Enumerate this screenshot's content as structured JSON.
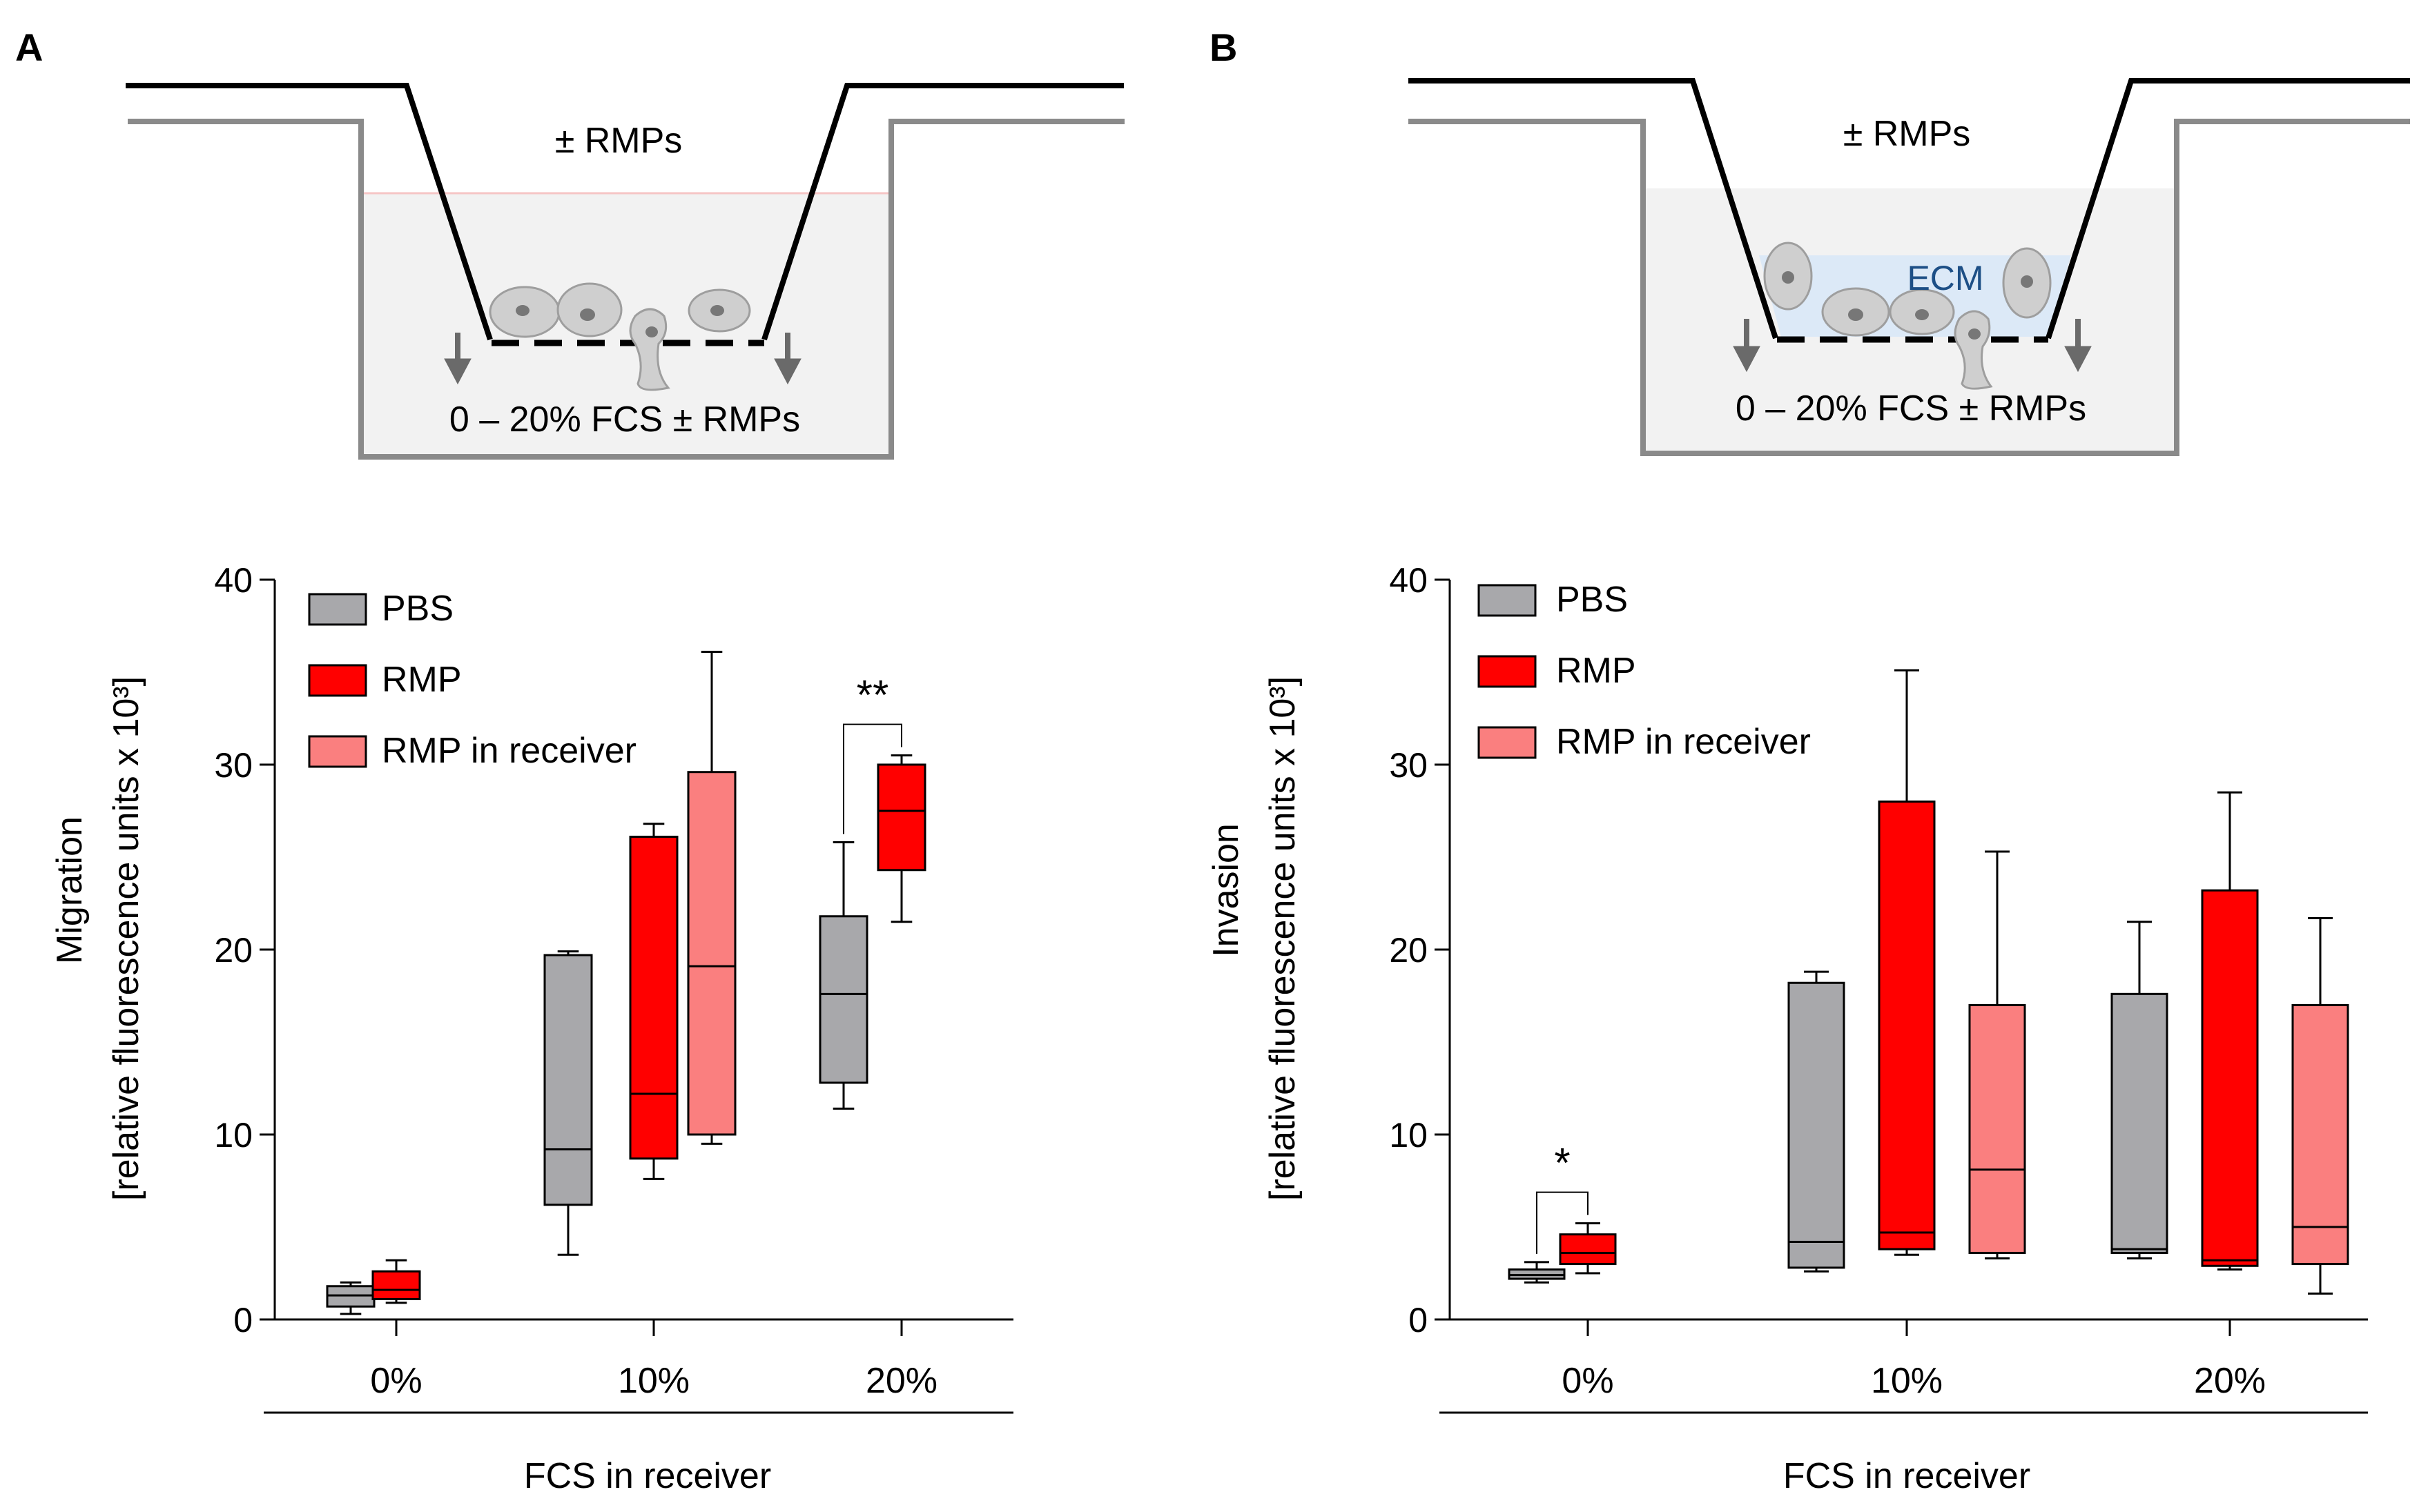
{
  "panels": [
    {
      "letter": "A",
      "schematic": {
        "top_label": "± RMPs",
        "bottom_label": "0 – 20% FCS ± RMPs",
        "ecm_label": ""
      },
      "chart_data": {
        "type": "box",
        "ylabel_line1": "Migration",
        "ylabel_line2": "[relative fluorescence units x 10³]",
        "xlabel": "FCS in receiver",
        "ylim": [
          0,
          40
        ],
        "yticks": [
          "0",
          "10",
          "20",
          "30",
          "40"
        ],
        "categories": [
          "0%",
          "10%",
          "20%"
        ],
        "legend": [
          "PBS",
          "RMP",
          "RMP in receiver"
        ],
        "significance": [
          {
            "label": "**",
            "category": "20%",
            "between": [
              "PBS",
              "RMP"
            ]
          }
        ],
        "series": [
          {
            "name": "PBS",
            "color": "#a8a8ab",
            "boxes": [
              {
                "category": "0%",
                "min": 0.3,
                "q1": 0.7,
                "median": 1.3,
                "q3": 1.8,
                "max": 2.0
              },
              {
                "category": "10%",
                "min": 3.5,
                "q1": 6.2,
                "median": 9.2,
                "q3": 19.7,
                "max": 19.9
              },
              {
                "category": "20%",
                "min": 11.4,
                "q1": 12.8,
                "median": 17.6,
                "q3": 21.8,
                "max": 25.8
              }
            ]
          },
          {
            "name": "RMP",
            "color": "#ff0000",
            "boxes": [
              {
                "category": "0%",
                "min": 0.9,
                "q1": 1.1,
                "median": 1.6,
                "q3": 2.6,
                "max": 3.2
              },
              {
                "category": "10%",
                "min": 7.6,
                "q1": 8.7,
                "median": 12.2,
                "q3": 26.1,
                "max": 26.8
              },
              {
                "category": "20%",
                "min": 21.5,
                "q1": 24.3,
                "median": 27.5,
                "q3": 30.0,
                "max": 30.5
              }
            ]
          },
          {
            "name": "RMP in receiver",
            "color": "#fa7f7f",
            "boxes": [
              {
                "category": "10%",
                "min": 9.5,
                "q1": 10.0,
                "median": 19.1,
                "q3": 29.6,
                "max": 36.1
              }
            ]
          }
        ]
      }
    },
    {
      "letter": "B",
      "schematic": {
        "top_label": "± RMPs",
        "bottom_label": "0 – 20% FCS ± RMPs",
        "ecm_label": "ECM"
      },
      "chart_data": {
        "type": "box",
        "ylabel_line1": "Invasion",
        "ylabel_line2": "[relative fluorescence units x 10³]",
        "xlabel": "FCS in receiver",
        "ylim": [
          0,
          40
        ],
        "yticks": [
          "0",
          "10",
          "20",
          "30",
          "40"
        ],
        "categories": [
          "0%",
          "10%",
          "20%"
        ],
        "legend": [
          "PBS",
          "RMP",
          "RMP in receiver"
        ],
        "significance": [
          {
            "label": "*",
            "category": "0%",
            "between": [
              "PBS",
              "RMP"
            ]
          }
        ],
        "series": [
          {
            "name": "PBS",
            "color": "#a8a8ab",
            "boxes": [
              {
                "category": "0%",
                "min": 2.0,
                "q1": 2.2,
                "median": 2.4,
                "q3": 2.7,
                "max": 3.1
              },
              {
                "category": "10%",
                "min": 2.6,
                "q1": 2.8,
                "median": 4.2,
                "q3": 18.2,
                "max": 18.8
              },
              {
                "category": "20%",
                "min": 3.3,
                "q1": 3.6,
                "median": 3.8,
                "q3": 17.6,
                "max": 21.5
              }
            ]
          },
          {
            "name": "RMP",
            "color": "#ff0000",
            "boxes": [
              {
                "category": "0%",
                "min": 2.5,
                "q1": 3.0,
                "median": 3.6,
                "q3": 4.6,
                "max": 5.2
              },
              {
                "category": "10%",
                "min": 3.5,
                "q1": 3.8,
                "median": 4.7,
                "q3": 28.0,
                "max": 35.1
              },
              {
                "category": "20%",
                "min": 2.7,
                "q1": 2.9,
                "median": 3.2,
                "q3": 23.2,
                "max": 28.5
              }
            ]
          },
          {
            "name": "RMP in receiver",
            "color": "#fa7f7f",
            "boxes": [
              {
                "category": "10%",
                "min": 3.3,
                "q1": 3.6,
                "median": 8.1,
                "q3": 17.0,
                "max": 25.3
              },
              {
                "category": "20%",
                "min": 1.4,
                "q1": 3.0,
                "median": 5.0,
                "q3": 17.0,
                "max": 21.7
              }
            ]
          }
        ]
      }
    }
  ]
}
